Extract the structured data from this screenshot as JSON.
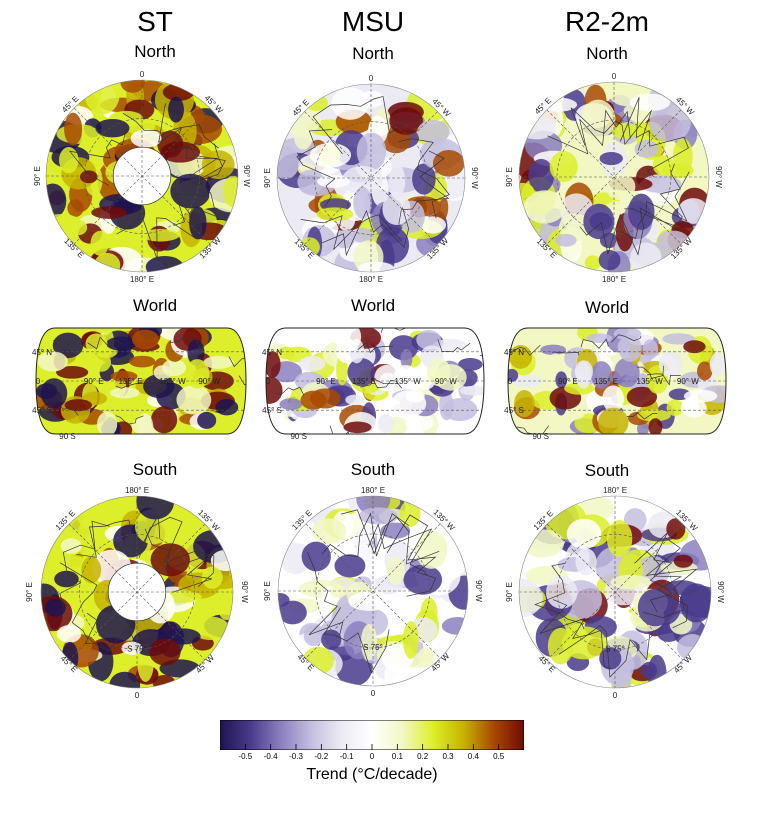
{
  "columns": [
    "ST",
    "MSU",
    "R2-2m"
  ],
  "rows": [
    "North",
    "World",
    "South"
  ],
  "north_ticks": {
    "top": "0",
    "left": "90° E",
    "right": "90° W",
    "bottom": "180° E",
    "diag_tl": "45° E",
    "diag_tr": "45° W",
    "diag_bl": "135° E",
    "diag_br": "135° W"
  },
  "south_ticks": {
    "top": "180° E",
    "left": "90° E",
    "right": "90° W",
    "bottom": "0",
    "diag_tl": "135° E",
    "diag_tr": "135° W",
    "diag_bl": "45° E",
    "diag_br": "45° W",
    "center": "S 75°"
  },
  "world_ticks": {
    "lat_top": "45° N",
    "lat_mid": "0",
    "lat_bot": "45° S",
    "lon_a": "90° E",
    "lon_b": "135° E",
    "lon_c": "135° W",
    "lon_d": "90° W",
    "pole": "90 S"
  },
  "colorbar": {
    "ticks": [
      "-0.5",
      "-0.4",
      "-0.3",
      "-0.2",
      "-0.1",
      "0",
      "0.1",
      "0.2",
      "0.3",
      "0.4",
      "0.5"
    ],
    "label": "Trend (°C/decade)",
    "min": -0.6,
    "max": 0.6,
    "colors": [
      "#1e1450",
      "#4a3a8c",
      "#8c7fbf",
      "#c4bedf",
      "#ecebf4",
      "#ffffff",
      "#f2f7c4",
      "#dcef2a",
      "#c6b400",
      "#a84a00",
      "#6e0a0a"
    ]
  }
}
